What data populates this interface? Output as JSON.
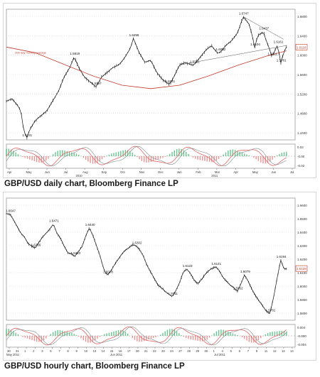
{
  "captions": {
    "daily": "GBP/USD daily chart, Bloomberg Finance LP",
    "hourly": "GBP/USD hourly chart, Bloomberg Finance LP"
  },
  "colors": {
    "price": "#111111",
    "moving_average": "#c0392b",
    "osc_red": "#e06666",
    "osc_green": "#27ae60",
    "grid": "#cfcfcf"
  },
  "chart_data": [
    {
      "type": "line",
      "name": "GBP/USD daily",
      "x_ticks": [
        "Apr",
        "May",
        "Jun",
        "Jul",
        "Aug",
        "Sep",
        "Oct",
        "Nov",
        "Dec",
        "Jan",
        "Feb",
        "Mar",
        "Apr",
        "May",
        "Jun",
        "Jul"
      ],
      "x_year_labels": [
        "2010",
        "2011"
      ],
      "y_ticks": [
        "1.6800",
        "1.6400",
        "1.6000",
        "1.5600",
        "1.5200",
        "1.4800",
        "1.4400"
      ],
      "ylim": [
        1.42,
        1.69
      ],
      "ma_label": "200 day moving average",
      "price_tag": "1.6118",
      "osc_ticks": [
        "0.02",
        "-0.00",
        "-0.02"
      ],
      "osc_ylim": [
        -0.03,
        0.03
      ],
      "annotations": [
        {
          "text": "1.4231",
          "x": 7,
          "y": 1.4231
        },
        {
          "text": "1.5919",
          "x": 23.5,
          "y": 1.5919
        },
        {
          "text": "1.5297",
          "x": 31,
          "y": 1.5297
        },
        {
          "text": "1.6298",
          "x": 44,
          "y": 1.6298
        },
        {
          "text": "1.5341",
          "x": 56.5,
          "y": 1.5341
        },
        {
          "text": "1.5751",
          "x": 65,
          "y": 1.5751
        },
        {
          "text": "1.6002",
          "x": 74,
          "y": 1.6002
        },
        {
          "text": "1.6747",
          "x": 82,
          "y": 1.6747
        },
        {
          "text": "1.6437",
          "x": 89,
          "y": 1.6437
        },
        {
          "text": "1.6104",
          "x": 86,
          "y": 1.6104
        },
        {
          "text": "1.6161",
          "x": 94,
          "y": 1.6161
        },
        {
          "text": "1.5911",
          "x": 92,
          "y": 1.5911
        },
        {
          "text": "1.5781",
          "x": 95,
          "y": 1.5781
        }
      ],
      "price_points": [
        [
          0,
          1.5
        ],
        [
          2,
          1.505
        ],
        [
          4,
          1.49
        ],
        [
          5,
          1.48
        ],
        [
          6,
          1.44
        ],
        [
          7,
          1.4231
        ],
        [
          8,
          1.44
        ],
        [
          10,
          1.46
        ],
        [
          12,
          1.47
        ],
        [
          14,
          1.48
        ],
        [
          16,
          1.5
        ],
        [
          18,
          1.52
        ],
        [
          20,
          1.55
        ],
        [
          22,
          1.57
        ],
        [
          23.5,
          1.5919
        ],
        [
          25,
          1.57
        ],
        [
          27,
          1.55
        ],
        [
          29,
          1.54
        ],
        [
          31,
          1.5297
        ],
        [
          33,
          1.55
        ],
        [
          35,
          1.56
        ],
        [
          37,
          1.57
        ],
        [
          39,
          1.575
        ],
        [
          41,
          1.59
        ],
        [
          43,
          1.61
        ],
        [
          44,
          1.6298
        ],
        [
          46,
          1.6
        ],
        [
          48,
          1.58
        ],
        [
          50,
          1.585
        ],
        [
          52,
          1.56
        ],
        [
          54,
          1.545
        ],
        [
          56.5,
          1.5341
        ],
        [
          58,
          1.55
        ],
        [
          60,
          1.575
        ],
        [
          62,
          1.58
        ],
        [
          64,
          1.575
        ],
        [
          65,
          1.5751
        ],
        [
          67,
          1.59
        ],
        [
          69,
          1.605
        ],
        [
          71,
          1.615
        ],
        [
          73,
          1.6
        ],
        [
          74,
          1.6002
        ],
        [
          76,
          1.615
        ],
        [
          78,
          1.625
        ],
        [
          80,
          1.64
        ],
        [
          82,
          1.6747
        ],
        [
          84,
          1.66
        ],
        [
          85,
          1.64
        ],
        [
          86,
          1.6104
        ],
        [
          87,
          1.635
        ],
        [
          89,
          1.6437
        ],
        [
          90,
          1.625
        ],
        [
          91,
          1.61
        ],
        [
          92,
          1.5911
        ],
        [
          93,
          1.605
        ],
        [
          94,
          1.6161
        ],
        [
          95,
          1.5781
        ],
        [
          96,
          1.6
        ],
        [
          97,
          1.6118
        ]
      ],
      "ma_points": [
        [
          0,
          1.6118
        ],
        [
          10,
          1.6
        ],
        [
          20,
          1.576
        ],
        [
          30,
          1.552
        ],
        [
          40,
          1.533
        ],
        [
          50,
          1.526
        ],
        [
          60,
          1.533
        ],
        [
          70,
          1.552
        ],
        [
          80,
          1.574
        ],
        [
          90,
          1.593
        ],
        [
          97,
          1.604
        ]
      ]
    },
    {
      "type": "line",
      "name": "GBP/USD hourly",
      "x_ticks": [
        "30",
        "31",
        "1",
        "2",
        "3",
        "6",
        "7",
        "8",
        "9",
        "10",
        "13",
        "14",
        "15",
        "16",
        "17",
        "20",
        "21",
        "22",
        "23",
        "24",
        "27",
        "28",
        "29",
        "30",
        "1",
        "4",
        "5",
        "6",
        "7",
        "8",
        "11",
        "12",
        "13",
        "14"
      ],
      "x_month_labels": [
        "May 2011",
        "Jun 2011",
        "Jul 2011"
      ],
      "y_ticks": [
        "1.6600",
        "1.6500",
        "1.6400",
        "1.6300",
        "1.6200",
        "1.6100",
        "1.6000",
        "1.5900",
        "1.5800"
      ],
      "ylim": [
        1.573,
        1.667
      ],
      "price_tag": "1.6128",
      "osc_ticks": [
        "0.004",
        "-0.000",
        "-0.004"
      ],
      "osc_ylim": [
        -0.006,
        0.006
      ],
      "annotations": [
        {
          "text": "1.6547",
          "x": 1,
          "y": 1.6547
        },
        {
          "text": "1.6286",
          "x": 8,
          "y": 1.6286
        },
        {
          "text": "1.6471",
          "x": 13,
          "y": 1.6471
        },
        {
          "text": "1.6440",
          "x": 23,
          "y": 1.644
        },
        {
          "text": "1.6223",
          "x": 19,
          "y": 1.6223
        },
        {
          "text": "1.6078",
          "x": 28,
          "y": 1.6078
        },
        {
          "text": "1.6302",
          "x": 36,
          "y": 1.6302
        },
        {
          "text": "1.6123",
          "x": 50,
          "y": 1.6123
        },
        {
          "text": "1.6141",
          "x": 58,
          "y": 1.6141
        },
        {
          "text": "1.5911",
          "x": 46,
          "y": 1.5911
        },
        {
          "text": "1.6079",
          "x": 66,
          "y": 1.6079
        },
        {
          "text": "1.5952",
          "x": 64,
          "y": 1.5952
        },
        {
          "text": "1.5781",
          "x": 73,
          "y": 1.5781
        },
        {
          "text": "1.6194",
          "x": 76,
          "y": 1.6194
        }
      ],
      "price_points": [
        [
          0,
          1.655
        ],
        [
          1,
          1.6547
        ],
        [
          2,
          1.65
        ],
        [
          3,
          1.645
        ],
        [
          4,
          1.64
        ],
        [
          5,
          1.637
        ],
        [
          6,
          1.632
        ],
        [
          7,
          1.63
        ],
        [
          8,
          1.6286
        ],
        [
          9,
          1.633
        ],
        [
          10,
          1.637
        ],
        [
          11,
          1.64
        ],
        [
          12,
          1.643
        ],
        [
          13,
          1.6471
        ],
        [
          14,
          1.64
        ],
        [
          15,
          1.636
        ],
        [
          16,
          1.63
        ],
        [
          17,
          1.625
        ],
        [
          18,
          1.624
        ],
        [
          19,
          1.6223
        ],
        [
          20,
          1.626
        ],
        [
          21,
          1.63
        ],
        [
          22,
          1.638
        ],
        [
          23,
          1.644
        ],
        [
          24,
          1.638
        ],
        [
          25,
          1.63
        ],
        [
          26,
          1.622
        ],
        [
          27,
          1.612
        ],
        [
          28,
          1.6078
        ],
        [
          29,
          1.611
        ],
        [
          30,
          1.616
        ],
        [
          31,
          1.62
        ],
        [
          32,
          1.624
        ],
        [
          33,
          1.627
        ],
        [
          34,
          1.629
        ],
        [
          35,
          1.631
        ],
        [
          36,
          1.6302
        ],
        [
          37,
          1.627
        ],
        [
          38,
          1.622
        ],
        [
          39,
          1.615
        ],
        [
          40,
          1.61
        ],
        [
          41,
          1.605
        ],
        [
          42,
          1.6
        ],
        [
          43,
          1.598
        ],
        [
          44,
          1.595
        ],
        [
          45,
          1.593
        ],
        [
          46,
          1.5911
        ],
        [
          47,
          1.596
        ],
        [
          48,
          1.602
        ],
        [
          49,
          1.61
        ],
        [
          50,
          1.6123
        ],
        [
          51,
          1.609
        ],
        [
          52,
          1.604
        ],
        [
          53,
          1.601
        ],
        [
          54,
          1.604
        ],
        [
          55,
          1.608
        ],
        [
          56,
          1.611
        ],
        [
          57,
          1.613
        ],
        [
          58,
          1.6141
        ],
        [
          59,
          1.611
        ],
        [
          60,
          1.606
        ],
        [
          61,
          1.603
        ],
        [
          62,
          1.6
        ],
        [
          63,
          1.598
        ],
        [
          64,
          1.5952
        ],
        [
          65,
          1.601
        ],
        [
          66,
          1.6079
        ],
        [
          67,
          1.603
        ],
        [
          68,
          1.597
        ],
        [
          69,
          1.592
        ],
        [
          70,
          1.588
        ],
        [
          71,
          1.584
        ],
        [
          72,
          1.58
        ],
        [
          73,
          1.5781
        ],
        [
          74,
          1.59
        ],
        [
          75,
          1.605
        ],
        [
          76,
          1.6194
        ],
        [
          77,
          1.612
        ],
        [
          77.6,
          1.6128
        ]
      ]
    }
  ]
}
